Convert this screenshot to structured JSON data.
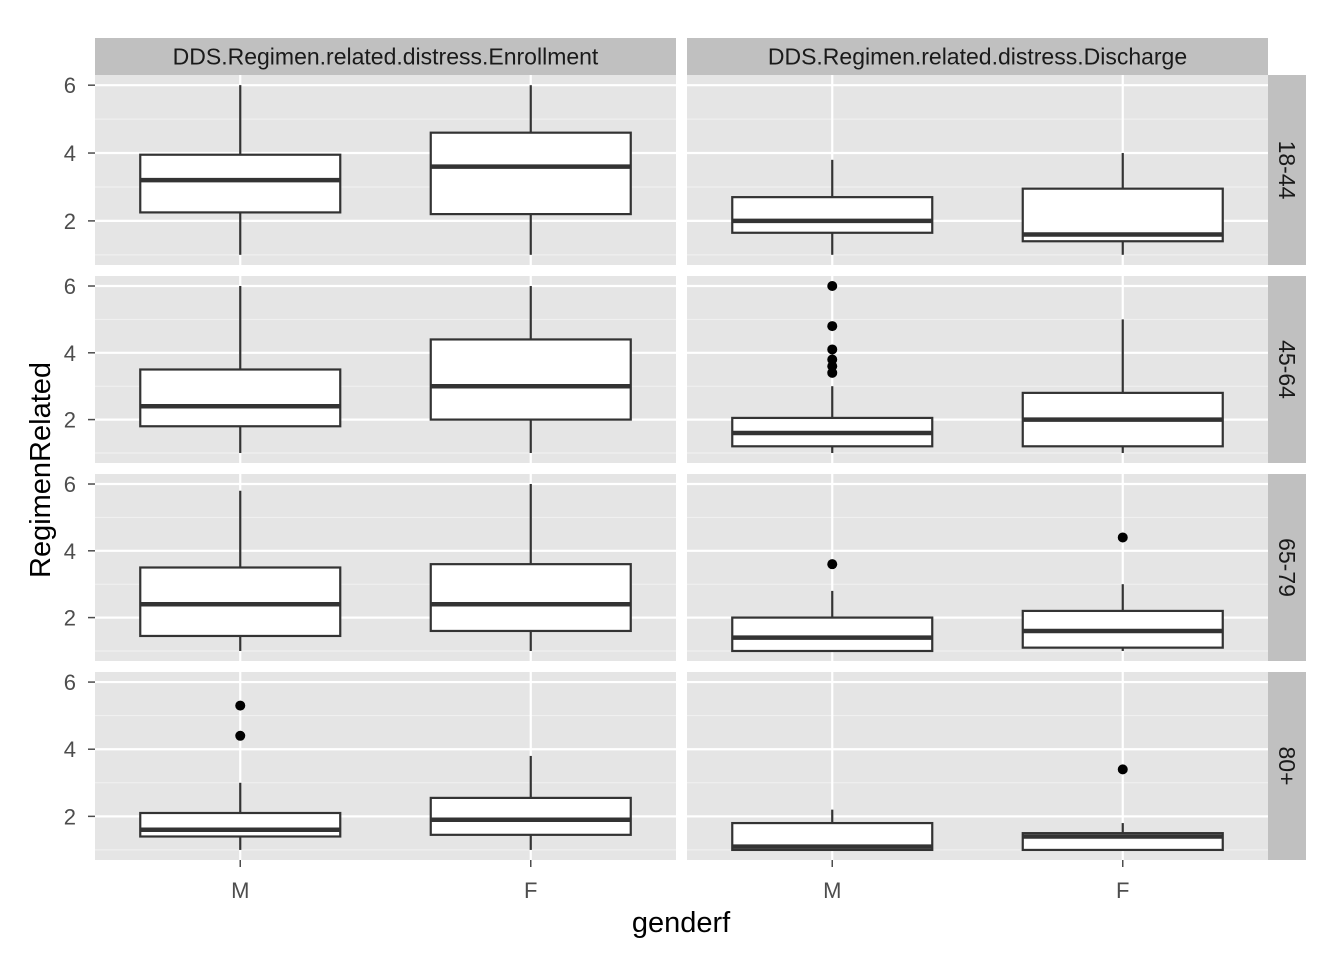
{
  "chart_data": {
    "type": "boxplot",
    "xlabel": "genderf",
    "ylabel": "RegimenRelated",
    "categories": [
      "M",
      "F"
    ],
    "ylim": [
      0.7,
      6.3
    ],
    "yticks": [
      2,
      4,
      6
    ],
    "column_facets": [
      "DDS.Regimen.related.distress.Enrollment",
      "DDS.Regimen.related.distress.Discharge"
    ],
    "row_facets": [
      "18-44",
      "45-64",
      "65-79",
      "80+"
    ],
    "grid": true,
    "panels": [
      {
        "row": "18-44",
        "column": "DDS.Regimen.related.distress.Enrollment",
        "boxes": [
          {
            "category": "M",
            "whisker_low": 1.0,
            "q1": 2.25,
            "median": 3.2,
            "q3": 3.95,
            "whisker_high": 6.0,
            "outliers": []
          },
          {
            "category": "F",
            "whisker_low": 1.0,
            "q1": 2.2,
            "median": 3.6,
            "q3": 4.6,
            "whisker_high": 6.0,
            "outliers": []
          }
        ]
      },
      {
        "row": "18-44",
        "column": "DDS.Regimen.related.distress.Discharge",
        "boxes": [
          {
            "category": "M",
            "whisker_low": 1.0,
            "q1": 1.65,
            "median": 2.0,
            "q3": 2.7,
            "whisker_high": 3.8,
            "outliers": []
          },
          {
            "category": "F",
            "whisker_low": 1.0,
            "q1": 1.4,
            "median": 1.6,
            "q3": 2.95,
            "whisker_high": 4.0,
            "outliers": []
          }
        ]
      },
      {
        "row": "45-64",
        "column": "DDS.Regimen.related.distress.Enrollment",
        "boxes": [
          {
            "category": "M",
            "whisker_low": 1.0,
            "q1": 1.8,
            "median": 2.4,
            "q3": 3.5,
            "whisker_high": 6.0,
            "outliers": []
          },
          {
            "category": "F",
            "whisker_low": 1.0,
            "q1": 2.0,
            "median": 3.0,
            "q3": 4.4,
            "whisker_high": 6.0,
            "outliers": []
          }
        ]
      },
      {
        "row": "45-64",
        "column": "DDS.Regimen.related.distress.Discharge",
        "boxes": [
          {
            "category": "M",
            "whisker_low": 1.0,
            "q1": 1.2,
            "median": 1.6,
            "q3": 2.05,
            "whisker_high": 3.0,
            "outliers": [
              3.4,
              3.6,
              3.8,
              4.1,
              4.8,
              6.0
            ]
          },
          {
            "category": "F",
            "whisker_low": 1.0,
            "q1": 1.2,
            "median": 2.0,
            "q3": 2.8,
            "whisker_high": 5.0,
            "outliers": []
          }
        ]
      },
      {
        "row": "65-79",
        "column": "DDS.Regimen.related.distress.Enrollment",
        "boxes": [
          {
            "category": "M",
            "whisker_low": 1.0,
            "q1": 1.45,
            "median": 2.4,
            "q3": 3.5,
            "whisker_high": 5.8,
            "outliers": []
          },
          {
            "category": "F",
            "whisker_low": 1.0,
            "q1": 1.6,
            "median": 2.4,
            "q3": 3.6,
            "whisker_high": 6.0,
            "outliers": []
          }
        ]
      },
      {
        "row": "65-79",
        "column": "DDS.Regimen.related.distress.Discharge",
        "boxes": [
          {
            "category": "M",
            "whisker_low": 1.0,
            "q1": 1.0,
            "median": 1.4,
            "q3": 2.0,
            "whisker_high": 2.8,
            "outliers": [
              3.6
            ]
          },
          {
            "category": "F",
            "whisker_low": 1.0,
            "q1": 1.1,
            "median": 1.6,
            "q3": 2.2,
            "whisker_high": 3.0,
            "outliers": [
              4.4
            ]
          }
        ]
      },
      {
        "row": "80+",
        "column": "DDS.Regimen.related.distress.Enrollment",
        "boxes": [
          {
            "category": "M",
            "whisker_low": 1.0,
            "q1": 1.4,
            "median": 1.6,
            "q3": 2.1,
            "whisker_high": 3.0,
            "outliers": [
              4.4,
              5.3
            ]
          },
          {
            "category": "F",
            "whisker_low": 1.0,
            "q1": 1.45,
            "median": 1.9,
            "q3": 2.55,
            "whisker_high": 3.8,
            "outliers": []
          }
        ]
      },
      {
        "row": "80+",
        "column": "DDS.Regimen.related.distress.Discharge",
        "boxes": [
          {
            "category": "M",
            "whisker_low": 1.0,
            "q1": 1.0,
            "median": 1.1,
            "q3": 1.8,
            "whisker_high": 2.2,
            "outliers": []
          },
          {
            "category": "F",
            "whisker_low": 1.0,
            "q1": 1.0,
            "median": 1.4,
            "q3": 1.5,
            "whisker_high": 1.8,
            "outliers": [
              3.4
            ]
          }
        ]
      }
    ],
    "colors": {
      "panel_background": "#e5e5e5",
      "strip_background": "#c0c0c0",
      "grid_major": "#ffffff",
      "grid_minor": "#f2f2f2",
      "box_fill": "#ffffff",
      "box_stroke": "#333333",
      "outlier": "#000000"
    }
  }
}
